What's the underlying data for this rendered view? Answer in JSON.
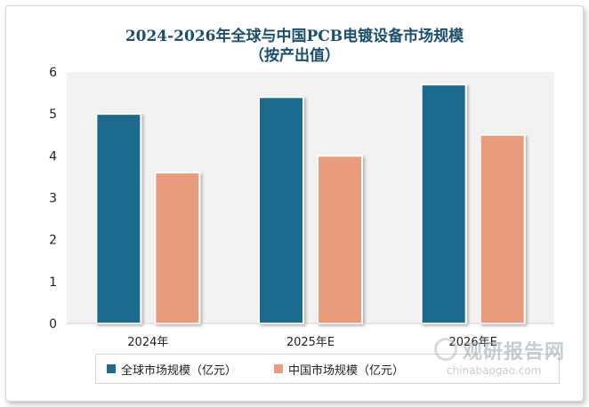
{
  "chart_data": {
    "type": "bar",
    "title_lines": [
      "2024-2026年全球与中国PCB电镀设备市场规模",
      "（按产出值）"
    ],
    "categories": [
      "2024年",
      "2025年E",
      "2026年E"
    ],
    "series": [
      {
        "name": "全球市场规模（亿元）",
        "color": "#1f6a8e",
        "values": [
          5.0,
          5.4,
          5.7
        ]
      },
      {
        "name": "中国市场规模（亿元）",
        "color": "#e89c7c",
        "values": [
          3.6,
          4.0,
          4.5
        ]
      }
    ],
    "ylim": [
      0,
      6
    ],
    "yticks": [
      0,
      1,
      2,
      3,
      4,
      5,
      6
    ],
    "legend_position": "bottom",
    "grid": false
  },
  "watermark": {
    "text": "观研报告网",
    "url": "chinabaogao.com"
  }
}
